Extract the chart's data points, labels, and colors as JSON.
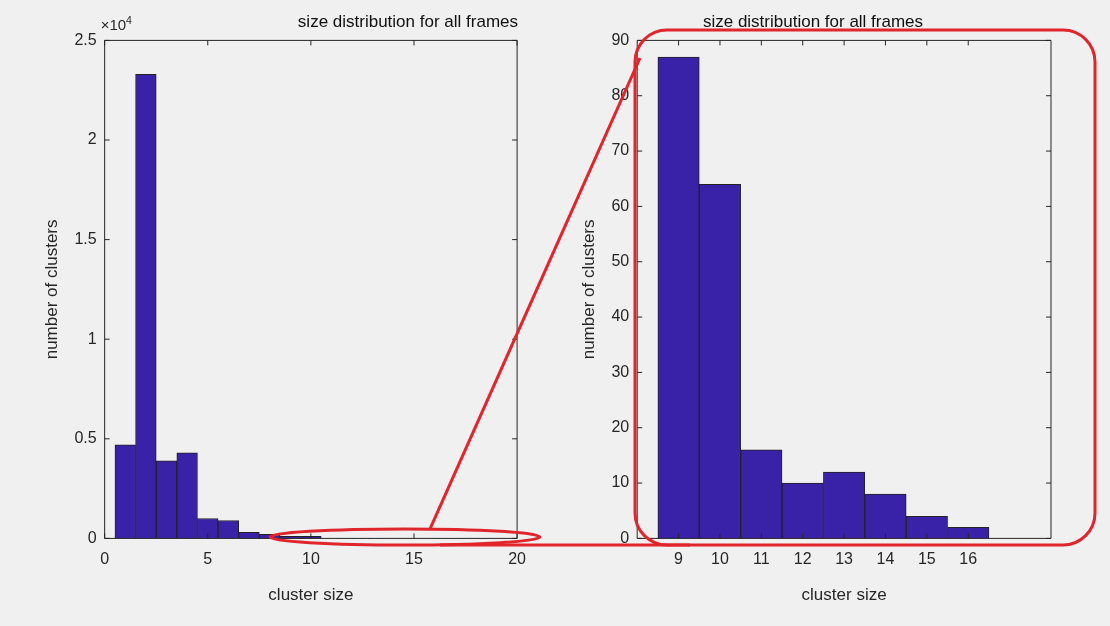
{
  "chart_data": [
    {
      "type": "histogram",
      "title": "size distribution for all frames",
      "xlabel": "cluster size",
      "ylabel": "number of clusters",
      "bins": [
        0.5,
        1.5,
        2.5,
        3.5,
        4.5,
        5.5,
        6.5,
        7.5,
        8.5,
        9.5,
        10.5,
        11.5,
        12.5,
        13.5,
        14.5,
        15.5,
        16.5
      ],
      "values": [
        0.47,
        2.33,
        0.39,
        0.43,
        0.1,
        0.09,
        0.03,
        0.02,
        0.01,
        0.01,
        0,
        0,
        0,
        0,
        0,
        0
      ],
      "color": "#3a22a8",
      "xlim": [
        0,
        20
      ],
      "xticks": [
        0,
        5,
        10,
        15,
        20
      ],
      "ylim": [
        0,
        2.5
      ],
      "yticks": [
        0,
        0.5,
        1,
        1.5,
        2,
        2.5
      ],
      "annotations": [
        "×10$^{4}$"
      ],
      "grid": false,
      "legend": false
    },
    {
      "type": "histogram",
      "title": "size distribution for all frames",
      "xlabel": "cluster size",
      "ylabel": "number of clusters",
      "bins": [
        8.5,
        9.5,
        10.5,
        11.5,
        12.5,
        13.5,
        14.5,
        15.5,
        16.5
      ],
      "values": [
        87,
        64,
        16,
        10,
        12,
        8,
        4,
        2
      ],
      "color": "#3a22a8",
      "xlim": [
        8,
        18
      ],
      "xticks": [
        9,
        10,
        11,
        12,
        13,
        14,
        15,
        16
      ],
      "ylim": [
        0,
        90
      ],
      "yticks": [
        0,
        10,
        20,
        30,
        40,
        50,
        60,
        70,
        80,
        90
      ],
      "grid": false,
      "legend": false
    }
  ]
}
